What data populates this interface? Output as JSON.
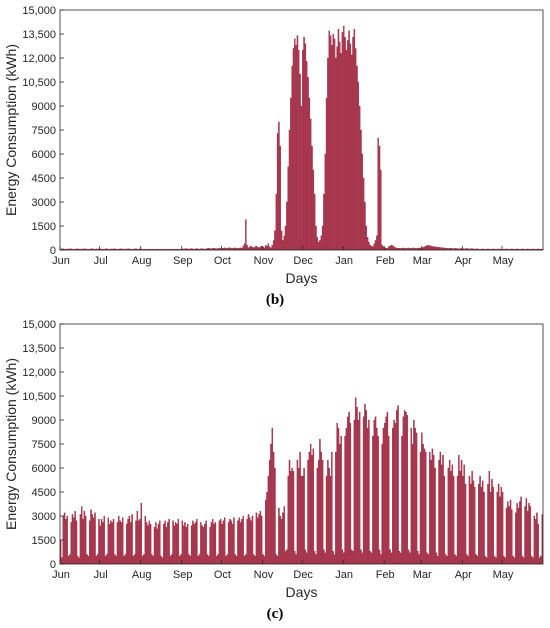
{
  "figure": {
    "labels": [
      "(b)",
      "(c)"
    ]
  },
  "colors": {
    "bar_fill": "#b5354f",
    "bar_stroke": "#7a1f33",
    "axis": "#262626",
    "background": "#ffffff"
  },
  "chart_data": [
    {
      "type": "bar",
      "panel_label": "(b)",
      "xlabel": "Days",
      "ylabel": "Energy Consumption (kWh)",
      "ylim": [
        0,
        15000
      ],
      "yticks": [
        0,
        1500,
        3000,
        4500,
        6000,
        7500,
        9000,
        10500,
        12000,
        13500,
        15000
      ],
      "ytick_labels": [
        "0",
        "1500",
        "3000",
        "4500",
        "6000",
        "7500",
        "9000",
        "10,500",
        "12,000",
        "13,500",
        "15,000"
      ],
      "months": [
        "Jun",
        "Jul",
        "Aug",
        "Sep",
        "Oct",
        "Nov",
        "Dec",
        "Jan",
        "Feb",
        "Mar",
        "Apr",
        "May"
      ],
      "grid": false,
      "x_unit": "day of year starting Jun 1",
      "values_monthly_profile": [
        [
          60,
          70,
          80,
          60,
          50,
          70,
          60,
          80,
          70,
          60,
          50,
          60,
          70,
          80,
          60,
          50,
          70,
          60,
          80,
          70,
          60,
          50,
          60,
          70,
          80,
          60,
          50,
          70,
          60,
          80
        ],
        [
          70,
          60,
          50,
          60,
          70,
          80,
          60,
          50,
          70,
          60,
          80,
          70,
          60,
          50,
          60,
          70,
          80,
          60,
          50,
          70,
          60,
          80,
          70,
          60,
          50,
          60,
          70,
          80,
          60,
          50,
          70
        ],
        [
          60,
          50,
          40,
          60,
          50,
          40,
          60,
          50,
          40,
          60,
          50,
          40,
          60,
          50,
          40,
          60,
          50,
          40,
          60,
          50,
          40,
          60,
          50,
          40,
          60,
          50,
          40,
          60,
          50,
          40,
          60
        ],
        [
          60,
          70,
          80,
          90,
          70,
          60,
          80,
          90,
          70,
          60,
          80,
          90,
          70,
          60,
          80,
          90,
          70,
          60,
          80,
          100,
          120,
          90,
          80,
          100,
          120,
          90,
          80,
          100,
          120,
          90
        ],
        [
          100,
          120,
          140,
          110,
          100,
          130,
          140,
          110,
          100,
          120,
          140,
          110,
          100,
          120,
          140,
          110,
          250,
          400,
          1900,
          300,
          150,
          200,
          250,
          180,
          150,
          200,
          250,
          180,
          150,
          200,
          250
        ],
        [
          200,
          150,
          300,
          250,
          400,
          200,
          150,
          300,
          600,
          1200,
          3500,
          7300,
          8000,
          6500,
          1200,
          600,
          900,
          1500,
          3000,
          5200,
          7500,
          9500,
          11500,
          12600,
          13200,
          12800,
          13400,
          12500,
          11000,
          9000
        ],
        [
          12500,
          13300,
          12900,
          11800,
          10800,
          9500,
          8200,
          6500,
          5000,
          3500,
          1500,
          800,
          500,
          600,
          900,
          1500,
          3500,
          6000,
          9500,
          12000,
          13700,
          13400,
          12800,
          13500,
          13200,
          12000,
          12700,
          13800,
          13000,
          12300,
          13600
        ],
        [
          14000,
          13300,
          12500,
          13100,
          13700,
          12900,
          12200,
          13300,
          13800,
          12600,
          11500,
          10500,
          9000,
          7500,
          6000,
          4500,
          3000,
          1500,
          800,
          500,
          300,
          250,
          200,
          400,
          600,
          900,
          7000,
          6500,
          5000,
          300,
          200
        ],
        [
          150,
          120,
          100,
          200,
          250,
          300,
          280,
          200,
          150,
          130,
          120,
          110,
          100,
          120,
          130,
          110,
          100,
          120,
          130,
          110,
          100,
          120,
          130,
          110,
          100,
          120,
          130,
          110
        ],
        [
          150,
          180,
          200,
          250,
          280,
          300,
          270,
          250,
          230,
          210,
          200,
          190,
          180,
          170,
          160,
          150,
          140,
          130,
          120,
          110,
          100,
          110,
          120,
          100,
          90,
          100,
          110,
          90,
          80,
          90,
          100
        ],
        [
          90,
          80,
          90,
          100,
          80,
          70,
          80,
          90,
          70,
          60,
          70,
          80,
          60,
          50,
          60,
          70,
          60,
          50,
          60,
          70,
          60,
          50,
          60,
          70,
          60,
          50,
          60,
          70,
          60,
          50
        ],
        [
          60,
          50,
          60,
          70,
          60,
          50,
          60,
          70,
          60,
          50,
          60,
          70,
          60,
          50,
          60,
          70,
          60,
          50,
          60,
          70,
          60,
          50,
          60,
          70,
          60,
          50,
          60,
          70,
          60,
          50,
          60
        ]
      ]
    },
    {
      "type": "bar",
      "panel_label": "(c)",
      "xlabel": "Days",
      "ylabel": "Energy Consumption (kWh)",
      "ylim": [
        0,
        15000
      ],
      "yticks": [
        0,
        1500,
        3000,
        4500,
        6000,
        7500,
        9000,
        10500,
        12000,
        13500,
        15000
      ],
      "ytick_labels": [
        "0",
        "1500",
        "3000",
        "4500",
        "6000",
        "7500",
        "9000",
        "10,500",
        "12,000",
        "13,500",
        "15,000"
      ],
      "months": [
        "Jun",
        "Jul",
        "Aug",
        "Sep",
        "Oct",
        "Nov",
        "Dec",
        "Jan",
        "Feb",
        "Mar",
        "Apr",
        "May"
      ],
      "grid": false,
      "x_unit": "day of year starting Jun 1",
      "values_monthly_profile": [
        [
          1500,
          400,
          3000,
          3200,
          2800,
          3000,
          500,
          600,
          2600,
          3100,
          2900,
          3300,
          2700,
          500,
          400,
          3100,
          3600,
          2800,
          3300,
          3000,
          600,
          500,
          2700,
          3400,
          3100,
          2900,
          3200,
          500,
          600,
          2800
        ],
        [
          2400,
          2800,
          2600,
          3000,
          500,
          600,
          2900,
          2500,
          2700,
          2600,
          2800,
          600,
          500,
          2600,
          3000,
          2700,
          2600,
          2900,
          500,
          600,
          2500,
          2800,
          3000,
          2600,
          3100,
          500,
          600,
          2700,
          3300,
          2700,
          2800
        ],
        [
          3800,
          500,
          600,
          3000,
          2600,
          2400,
          2700,
          2500,
          600,
          500,
          2300,
          2600,
          2200,
          2500,
          2700,
          500,
          400,
          2500,
          2700,
          2300,
          2600,
          2800,
          500,
          600,
          2700,
          2400,
          2600,
          2500,
          2800,
          500,
          600
        ],
        [
          2700,
          2400,
          2600,
          2300,
          2500,
          600,
          500,
          2400,
          2700,
          2500,
          2600,
          2800,
          500,
          600,
          2600,
          2400,
          2300,
          2500,
          2700,
          600,
          500,
          2300,
          2600,
          2800,
          2500,
          2600,
          500,
          600,
          2700,
          2800
        ],
        [
          2500,
          2700,
          2900,
          500,
          600,
          2600,
          2800,
          2700,
          2500,
          2900,
          600,
          500,
          2700,
          2900,
          2600,
          2800,
          3000,
          500,
          600,
          2800,
          3100,
          2900,
          2700,
          3000,
          600,
          500,
          3200,
          2900,
          3100,
          3300,
          3000
        ],
        [
          600,
          500,
          4000,
          4500,
          5500,
          6500,
          7500,
          8500,
          7000,
          6000,
          600,
          500,
          3500,
          3000,
          2800,
          3200,
          3600,
          800,
          900,
          5500,
          6500,
          5800,
          6000,
          5800,
          800,
          600,
          6500,
          6000,
          7000,
          5500
        ],
        [
          5500,
          6000,
          900,
          700,
          6500,
          7000,
          7500,
          6800,
          7200,
          800,
          600,
          6000,
          6500,
          7800,
          7000,
          6500,
          900,
          700,
          5500,
          6500,
          6000,
          5500,
          7000,
          800,
          600,
          7000,
          8800,
          8500,
          7500,
          8000,
          900
        ],
        [
          700,
          8000,
          8500,
          9200,
          9500,
          8800,
          900,
          800,
          9000,
          10400,
          9800,
          9000,
          9500,
          900,
          700,
          9200,
          10000,
          9600,
          8500,
          9000,
          800,
          700,
          8000,
          9000,
          9200,
          8500,
          8000,
          900,
          600,
          7500,
          8500
        ],
        [
          8800,
          9200,
          9500,
          8000,
          900,
          700,
          8500,
          9000,
          8800,
          9600,
          9900,
          800,
          700,
          8000,
          9200,
          9600,
          9500,
          9300,
          900,
          700,
          8500,
          7500,
          9000,
          8500,
          8200,
          800,
          600,
          7000
        ],
        [
          8200,
          7500,
          7200,
          7000,
          700,
          600,
          7000,
          6500,
          7200,
          6800,
          6000,
          700,
          500,
          6500,
          7000,
          6200,
          6800,
          5500,
          600,
          500,
          6000,
          6500,
          5800,
          6200,
          5500,
          600,
          500,
          5500,
          6800,
          5800,
          6500
        ],
        [
          5500,
          6200,
          5000,
          600,
          500,
          5500,
          5000,
          5800,
          5200,
          4800,
          600,
          500,
          5000,
          5500,
          4800,
          5200,
          4500,
          500,
          400,
          5000,
          5800,
          4500,
          5300,
          4800,
          500,
          400,
          4500,
          5000,
          4200,
          4800
        ],
        [
          4500,
          500,
          400,
          3500,
          3900,
          3600,
          4000,
          3400,
          500,
          400,
          3200,
          3800,
          3500,
          3900,
          4200,
          500,
          400,
          3600,
          4100,
          3300,
          3800,
          3600,
          500,
          400,
          3000,
          2800,
          3200,
          2500,
          400,
          500,
          3100
        ]
      ]
    }
  ]
}
